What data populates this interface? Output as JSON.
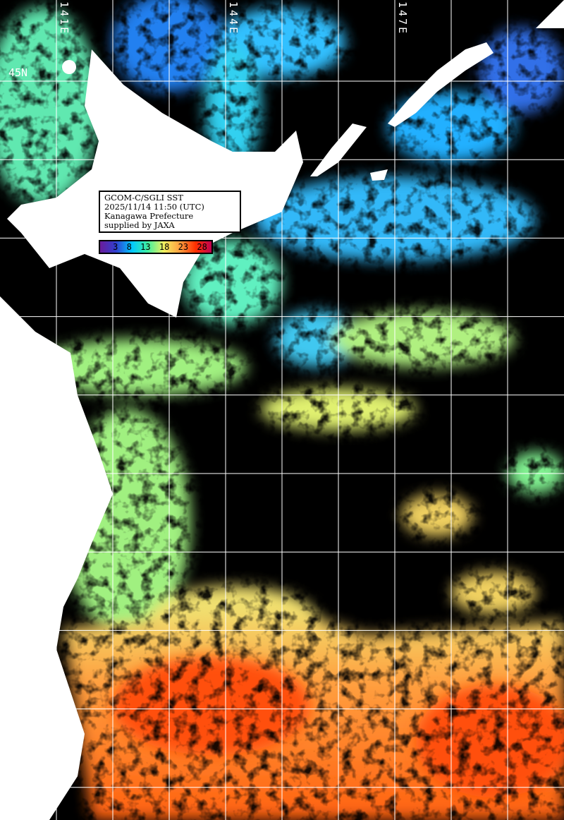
{
  "title_box": {
    "line1": "GCOM-C/SGLI SST",
    "line2": "2025/11/14 11:50 (UTC)",
    "line3": "Kanagawa Prefecture",
    "line4": "supplied by JAXA"
  },
  "colorbar": {
    "ticks": [
      "3",
      "8",
      "13",
      "18",
      "23",
      "28"
    ],
    "colors": [
      "#6a1b9a",
      "#3040d0",
      "#00c8ff",
      "#40f0a0",
      "#f0f060",
      "#ffa040",
      "#ff3000",
      "#c00050"
    ]
  },
  "graticule": {
    "lon_labels": [
      "141E",
      "144E",
      "147E"
    ],
    "lat_labels": [
      "45N"
    ]
  },
  "colors": {
    "land": "#ffffff",
    "no_data": "#000000",
    "grid": "#ffffff"
  }
}
